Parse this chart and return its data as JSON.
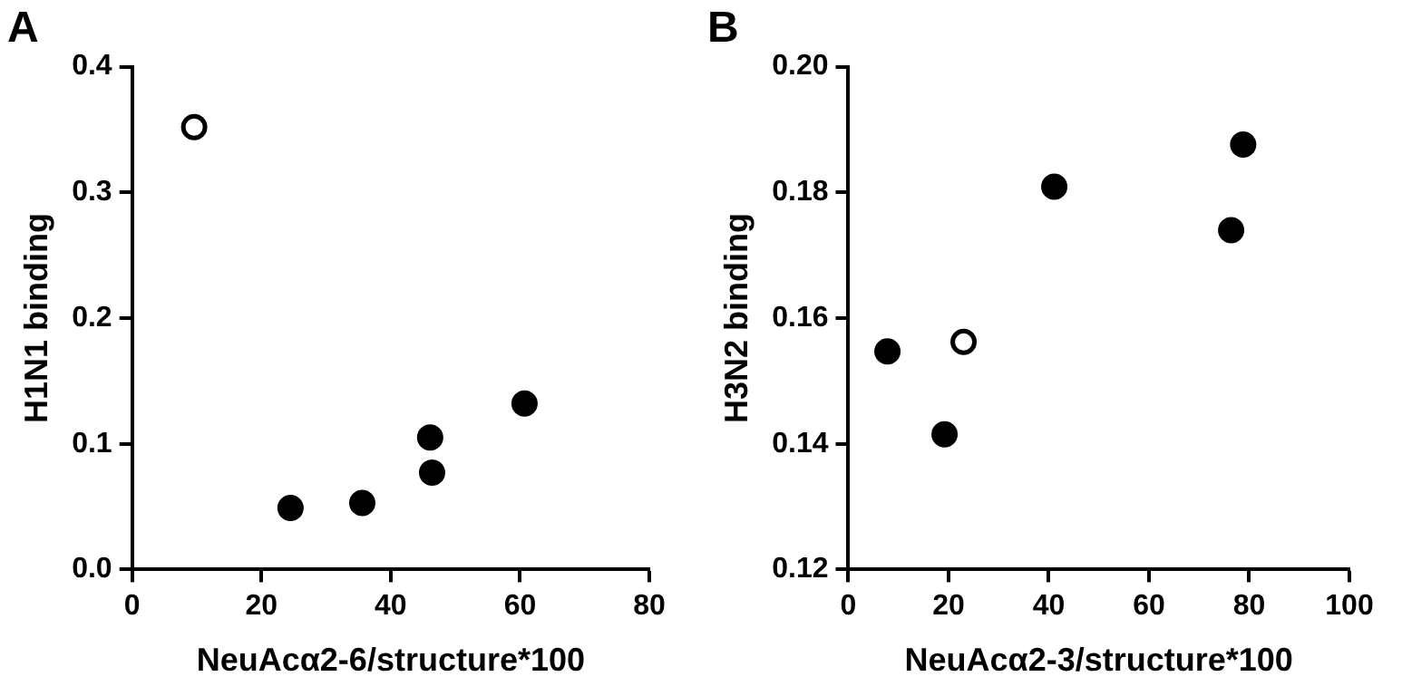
{
  "chart_data": [
    {
      "type": "scatter",
      "title": "A",
      "xlabel": "NeuAcα2-6/structure*100",
      "ylabel": "H1N1 binding",
      "xlim": [
        0,
        80
      ],
      "xticks": [
        0,
        20,
        40,
        60,
        80
      ],
      "ylim": [
        0,
        0.4
      ],
      "yticks": [
        {
          "value": 0,
          "label": "0.0"
        },
        0.1,
        0.2,
        0.3,
        0.4
      ],
      "grid": false,
      "legend": false,
      "marker": "circle",
      "series": [
        {
          "color": "#000000",
          "x": [
            24.5,
            35.6,
            46.1,
            46.4,
            60.7
          ],
          "values": [
            0.049,
            0.053,
            0.105,
            0.077,
            0.132
          ]
        },
        {
          "color": "#ffffff",
          "x": [
            9.6
          ],
          "values": [
            0.352
          ]
        }
      ]
    },
    {
      "type": "scatter",
      "title": "B",
      "xlabel": "NeuAcα2-3/structure*100",
      "ylabel": "H3N2 binding",
      "xlim": [
        0,
        100
      ],
      "xticks": [
        0,
        20,
        40,
        60,
        80,
        100
      ],
      "ylim": [
        0.12,
        0.2
      ],
      "yticks": [
        0.12,
        0.14,
        0.16,
        0.18,
        {
          "value": 0.2,
          "label": "0.20"
        }
      ],
      "grid": false,
      "legend": false,
      "marker": "circle",
      "series": [
        {
          "color": "#000000",
          "x": [
            7.8,
            19.2,
            41.1,
            76.4,
            78.8
          ],
          "values": [
            0.1547,
            0.1415,
            0.1809,
            0.174,
            0.1876
          ]
        },
        {
          "color": "#ffffff",
          "x": [
            23.0
          ],
          "values": [
            0.1562
          ]
        }
      ]
    }
  ]
}
